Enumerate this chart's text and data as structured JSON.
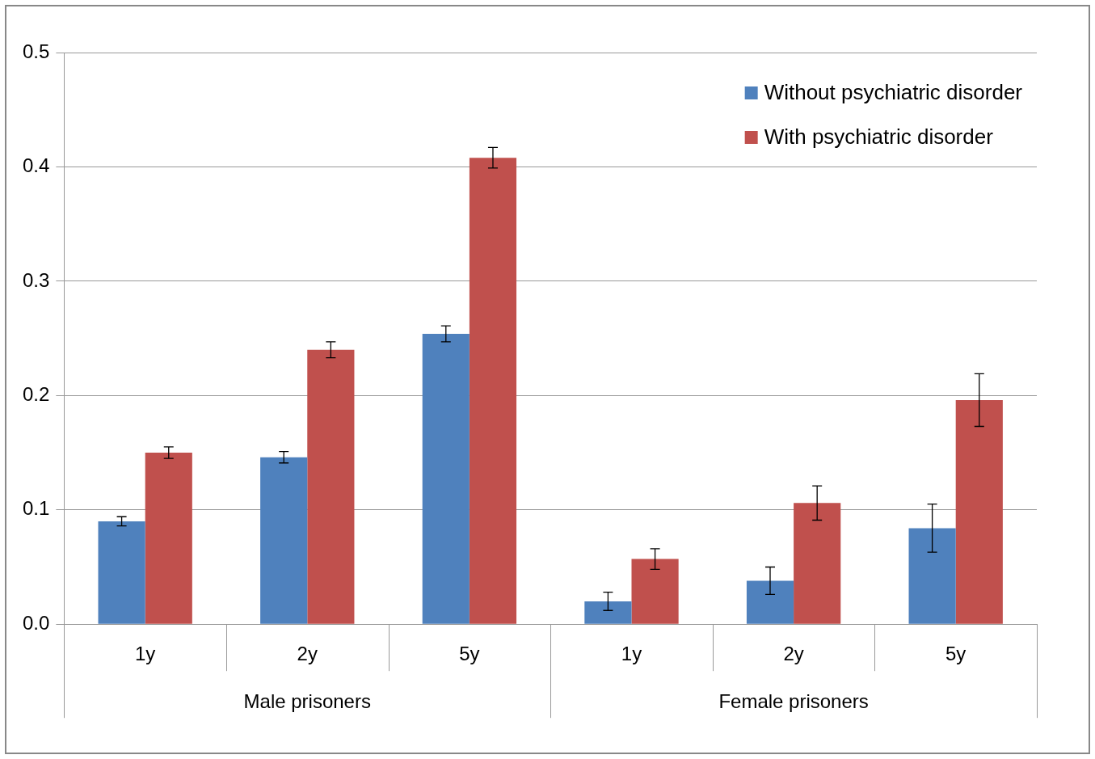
{
  "chart_data": {
    "type": "bar",
    "categories": [
      "1y",
      "2y",
      "5y",
      "1y",
      "2y",
      "5y"
    ],
    "series": [
      {
        "name": "Without psychiatric disorder",
        "color": "#4f81bd",
        "values": [
          0.09,
          0.146,
          0.254,
          0.02,
          0.038,
          0.084
        ],
        "errors": [
          0.004,
          0.005,
          0.007,
          0.008,
          0.012,
          0.021
        ]
      },
      {
        "name": "With psychiatric disorder",
        "color": "#c0504d",
        "values": [
          0.15,
          0.24,
          0.408,
          0.057,
          0.106,
          0.196
        ],
        "errors": [
          0.005,
          0.007,
          0.009,
          0.009,
          0.015,
          0.023
        ]
      }
    ],
    "annotations": [
      "Male prisoners",
      "Female prisoners"
    ],
    "ylim": [
      0,
      0.5
    ],
    "yticks": [
      {
        "value": 0,
        "label": "0.0"
      },
      0.1,
      0.2,
      0.3,
      0.4,
      0.5
    ],
    "grid": "y",
    "legend": "top right"
  }
}
